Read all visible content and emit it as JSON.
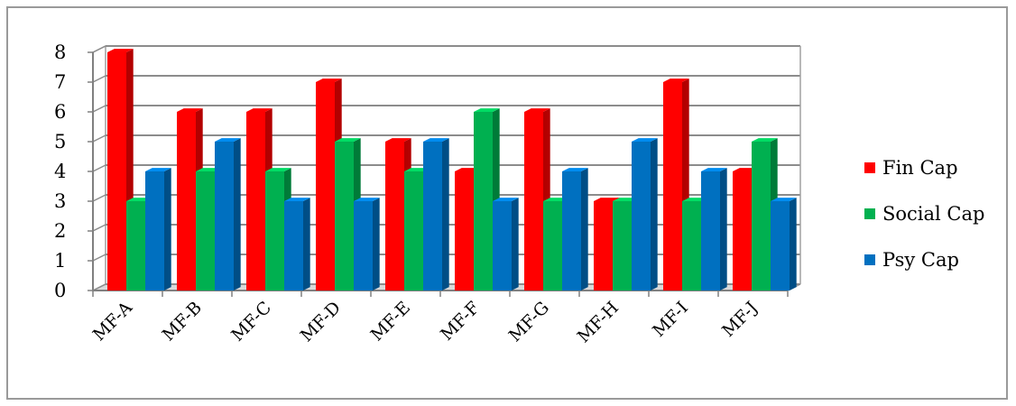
{
  "chart_data": {
    "type": "bar",
    "title": "",
    "xlabel": "",
    "ylabel": "",
    "ylim": [
      0,
      8
    ],
    "yticks": [
      "0",
      "1",
      "2",
      "3",
      "4",
      "5",
      "6",
      "7",
      "8"
    ],
    "grid": true,
    "legend_position": "right",
    "categories": [
      "MF-A",
      "MF-B",
      "MF-C",
      "MF-D",
      "MF-E",
      "MF-F",
      "MF-G",
      "MF-H",
      "MF-I",
      "MF-J"
    ],
    "series": [
      {
        "name": "Fin Cap",
        "color": "#ff0000",
        "values": [
          8,
          6,
          6,
          7,
          5,
          4,
          6,
          3,
          7,
          4
        ]
      },
      {
        "name": "Social Cap",
        "color": "#00b050",
        "values": [
          3,
          4,
          4,
          5,
          4,
          6,
          3,
          3,
          3,
          5
        ]
      },
      {
        "name": "Psy Cap",
        "color": "#0070c0",
        "values": [
          4,
          5,
          3,
          3,
          5,
          3,
          4,
          5,
          4,
          3
        ]
      }
    ]
  }
}
